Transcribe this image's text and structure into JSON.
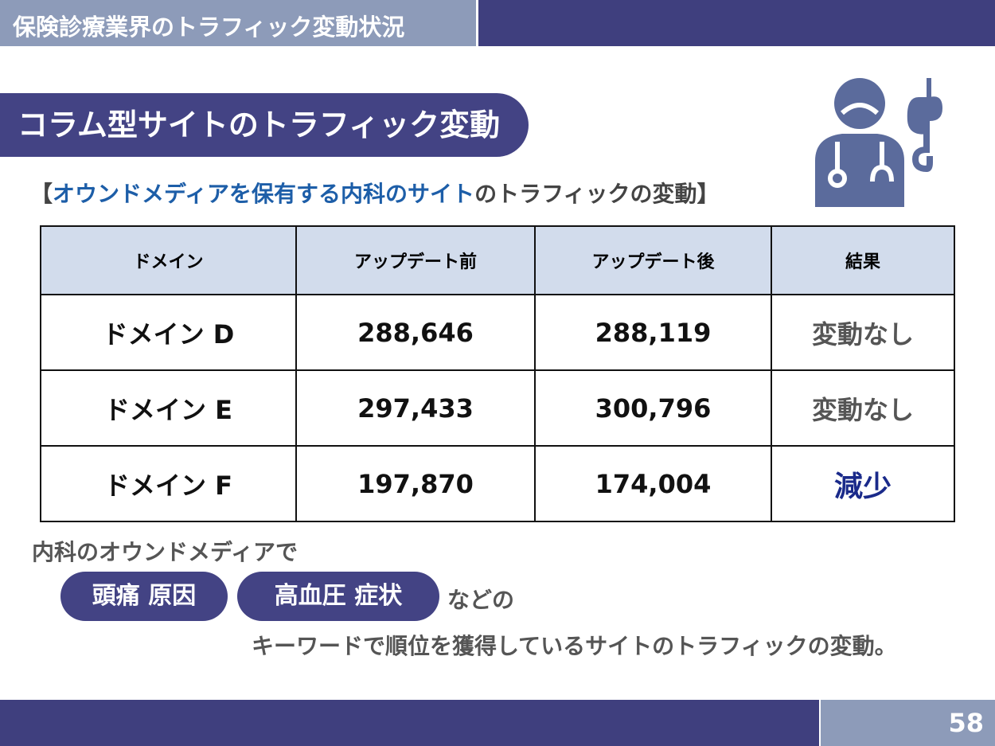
{
  "header": {
    "title": "保険診療業界のトラフィック変動状況"
  },
  "section": {
    "title": "コラム型サイトのトラフィック変動"
  },
  "subtitle": {
    "open": "【",
    "highlight": "オウンドメディアを保有する内科のサイト",
    "rest": "のトラフィックの変動】"
  },
  "icon": "doctor-stomach-icon",
  "table": {
    "headers": [
      "ドメイン",
      "アップデート前",
      "アップデート後",
      "結果"
    ],
    "rows": [
      [
        "ドメイン D",
        "288,646",
        "288,119",
        "変動なし"
      ],
      [
        "ドメイン E",
        "297,433",
        "300,796",
        "変動なし"
      ],
      [
        "ドメイン F",
        "197,870",
        "174,004",
        "減少"
      ]
    ]
  },
  "note": {
    "line1": "内科のオウンドメディアで",
    "keywords": [
      "頭痛 原因",
      "高血圧 症状"
    ],
    "tail": "などの",
    "line3": "キーワードで順位を獲得しているサイトのトラフィックの変動。"
  },
  "footer": {
    "page": "58"
  },
  "colors": {
    "navy": "#3f3f7e",
    "slate": "#8d9bb9",
    "blue": "#1d5ea8",
    "decrease": "#1a2a8a"
  }
}
